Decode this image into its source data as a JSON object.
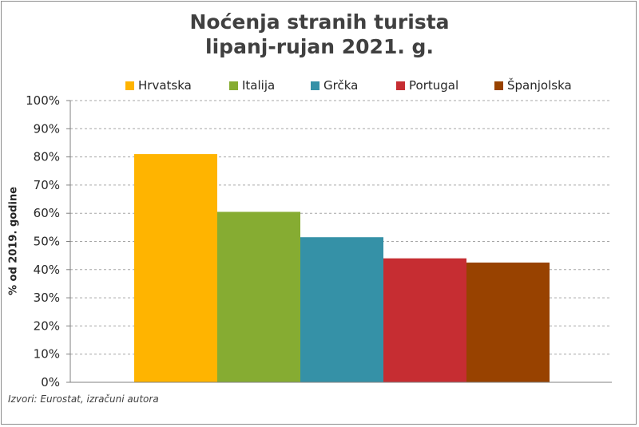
{
  "chart_data": {
    "type": "bar",
    "title_line1": "Noćenja stranih turista",
    "title_line2": "lipanj-rujan 2021. g.",
    "ylabel": "% od 2019. godine",
    "ylim": [
      0,
      100
    ],
    "y_ticks": [
      "0%",
      "10%",
      "20%",
      "30%",
      "40%",
      "50%",
      "60%",
      "70%",
      "80%",
      "90%",
      "100%"
    ],
    "grid": true,
    "legend_position": "top",
    "categories": [
      "Hrvatska",
      "Italija",
      "Grčka",
      "Portugal",
      "Španjolska"
    ],
    "values": [
      81,
      60.5,
      51.5,
      44,
      42.5
    ],
    "colors": [
      "#FFB400",
      "#86AC32",
      "#3591A7",
      "#C62D32",
      "#984200"
    ],
    "source": "Izvori: Eurostat, izračuni autora"
  }
}
